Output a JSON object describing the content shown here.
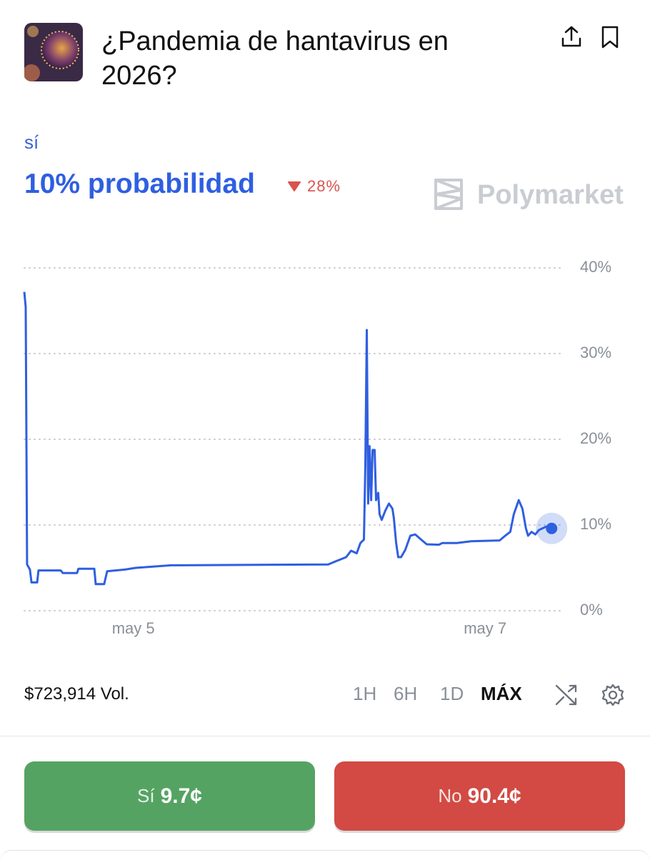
{
  "header": {
    "title": "¿Pandemia de hantavirus en 2026?"
  },
  "outcome": "sí",
  "probability": "10% probabilidad",
  "change": "28%",
  "brand": "Polymarket",
  "chart_data": {
    "type": "line",
    "x": [
      4.38,
      4.388,
      4.396,
      4.412,
      4.421,
      4.453,
      4.461,
      4.587,
      4.599,
      4.68,
      4.688,
      4.778,
      4.786,
      4.834,
      4.851,
      4.952,
      5.013,
      5.216,
      6.108,
      6.149,
      6.21,
      6.238,
      6.27,
      6.291,
      6.311,
      6.319,
      6.327,
      6.335,
      6.343,
      6.352,
      6.36,
      6.372,
      6.38,
      6.392,
      6.4,
      6.412,
      6.433,
      6.453,
      6.473,
      6.481,
      6.494,
      6.506,
      6.522,
      6.546,
      6.575,
      6.603,
      6.636,
      6.668,
      6.737,
      6.757,
      6.838,
      6.92,
      7.082,
      7.114,
      7.143,
      7.163,
      7.191,
      7.212,
      7.232,
      7.244,
      7.264,
      7.285,
      7.305,
      7.325,
      7.346,
      7.378
    ],
    "series": [
      {
        "color": "#2f5fe0",
        "values": [
          37.2,
          35.4,
          5.4,
          4.8,
          3.3,
          3.3,
          4.7,
          4.7,
          4.4,
          4.4,
          4.9,
          4.9,
          3.1,
          3.1,
          4.6,
          4.8,
          5.0,
          5.3,
          5.4,
          5.75,
          6.25,
          7.0,
          6.7,
          7.9,
          8.3,
          17.1,
          32.75,
          12.5,
          19.2,
          12.9,
          18.75,
          18.75,
          12.9,
          13.75,
          11.25,
          10.6,
          11.7,
          12.5,
          11.9,
          10.8,
          7.9,
          6.25,
          6.25,
          7.1,
          8.75,
          8.9,
          8.3,
          7.75,
          7.7,
          7.9,
          7.9,
          8.1,
          8.2,
          8.75,
          9.2,
          11.25,
          12.9,
          11.9,
          9.6,
          8.75,
          9.2,
          8.9,
          9.4,
          9.6,
          9.8,
          9.6
        ]
      }
    ],
    "xlim": [
      4.38,
      7.45
    ],
    "xticks": [
      {
        "value": 5,
        "label": "may 5"
      },
      {
        "value": 7,
        "label": "may 7"
      }
    ],
    "ylim": [
      0,
      40
    ],
    "yticks": [
      {
        "value": 0,
        "label": "0%"
      },
      {
        "value": 10,
        "label": "10%"
      },
      {
        "value": 20,
        "label": "20%"
      },
      {
        "value": 30,
        "label": "30%"
      },
      {
        "value": 40,
        "label": "40%"
      }
    ],
    "grid": true
  },
  "volume": "$723,914 Vol.",
  "ranges": [
    "1H",
    "6H",
    "1D",
    "MÁX"
  ],
  "buttons": {
    "yes": {
      "label": "Sí",
      "price": "9.7¢"
    },
    "no": {
      "label": "No",
      "price": "90.4¢"
    }
  }
}
